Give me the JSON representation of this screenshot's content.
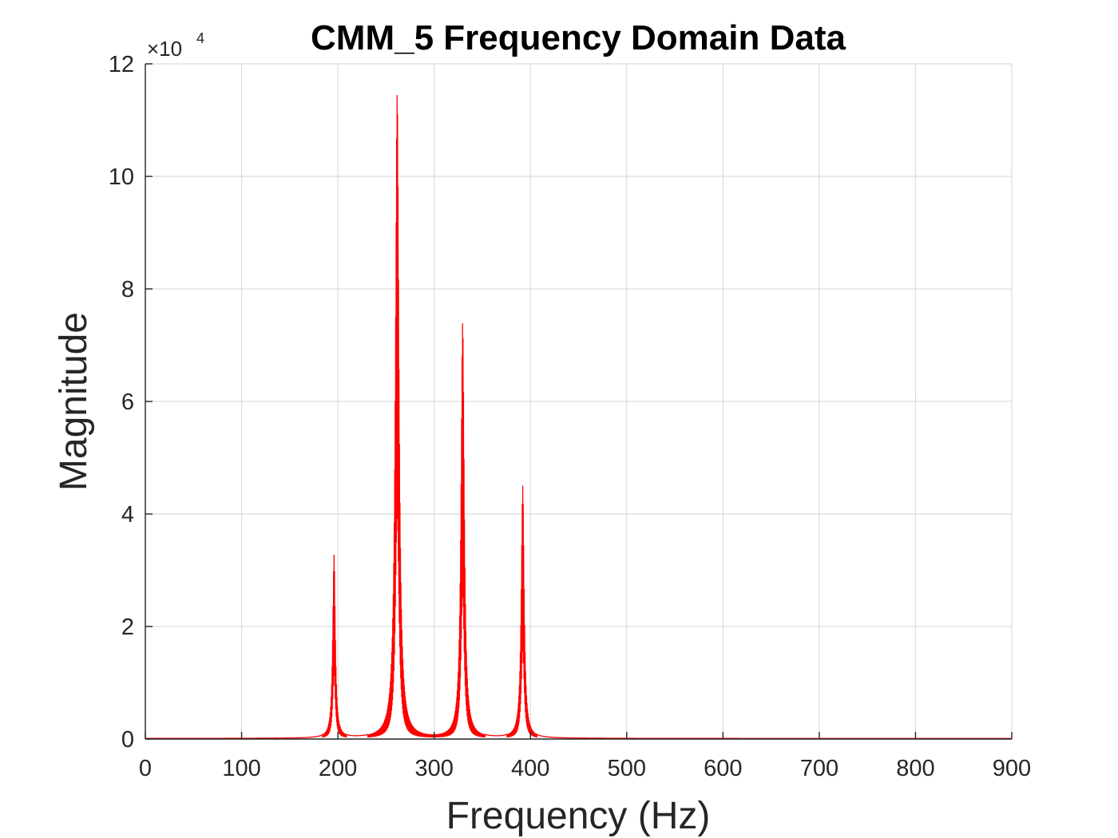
{
  "chart_data": {
    "type": "line",
    "title": "CMM_5 Frequency Domain Data",
    "xlabel": "Frequency (Hz)",
    "ylabel": "Magnitude",
    "y_exponent_label": "×10",
    "y_exponent_power": "4",
    "xlim": [
      0,
      900
    ],
    "ylim": [
      0,
      12
    ],
    "x_ticks": [
      0,
      100,
      200,
      300,
      400,
      500,
      600,
      700,
      800,
      900
    ],
    "y_ticks": [
      0,
      2,
      4,
      6,
      8,
      10,
      12
    ],
    "grid": true,
    "line_color": "#ff0000",
    "series": [
      {
        "peaks": [
          {
            "x": 196,
            "y": 3.25
          },
          {
            "x": 261.6,
            "y": 11.45
          },
          {
            "x": 329.6,
            "y": 7.38
          },
          {
            "x": 392,
            "y": 4.48
          }
        ]
      }
    ]
  }
}
